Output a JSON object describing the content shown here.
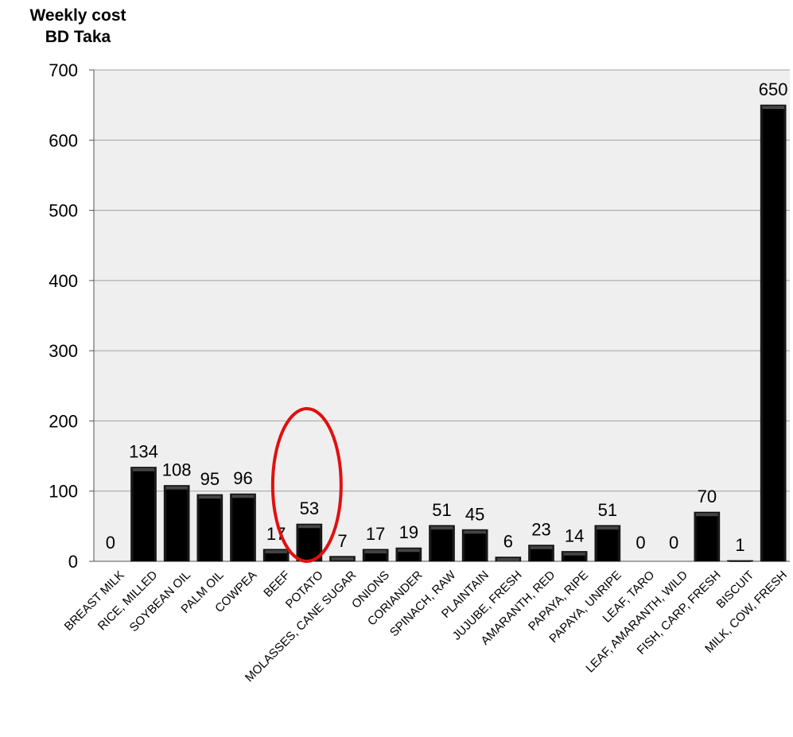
{
  "chart_data": {
    "type": "bar",
    "ylabel_line1": "Weekly cost",
    "ylabel_line2": "BD Taka",
    "xlabel": "",
    "ylim": [
      0,
      700
    ],
    "yticks": [
      0,
      100,
      200,
      300,
      400,
      500,
      600,
      700
    ],
    "grid": true,
    "legend": "none",
    "categories": [
      "BREAST MILK",
      "RICE, MILLED",
      "SOYBEAN OIL",
      "PALM OIL",
      "COWPEA",
      "BEEF",
      "POTATO",
      "MOLASSES, CANE SUGAR",
      "ONIONS",
      "CORIANDER",
      "SPINACH, RAW",
      "PLAINTAIN",
      "JUJUBE, FRESH",
      "AMARANTH, RED",
      "PAPAYA, RIPE",
      "PAPAYA, UNRIPE",
      "LEAF, TARO",
      "LEAF, AMARANTH, WILD",
      "FISH, CARP, FRESH",
      "BISCUIT",
      "MILK, COW, FRESH"
    ],
    "values": [
      0,
      134,
      108,
      95,
      96,
      17,
      53,
      7,
      17,
      19,
      51,
      45,
      6,
      23,
      14,
      51,
      0,
      0,
      70,
      1,
      650
    ],
    "data_labels": [
      "0",
      "134",
      "108",
      "95",
      "96",
      "17",
      "53",
      "7",
      "17",
      "19",
      "51",
      "45",
      "6",
      "23",
      "14",
      "51",
      "0",
      "0",
      "70",
      "1",
      "650"
    ],
    "annotation": {
      "shape": "ellipse",
      "highlighted_category": "POTATO"
    },
    "colors": {
      "bar": "#111111",
      "plot_background": "#efefef",
      "gridline": "#a0a0a0",
      "annotation": "#e01010"
    }
  }
}
